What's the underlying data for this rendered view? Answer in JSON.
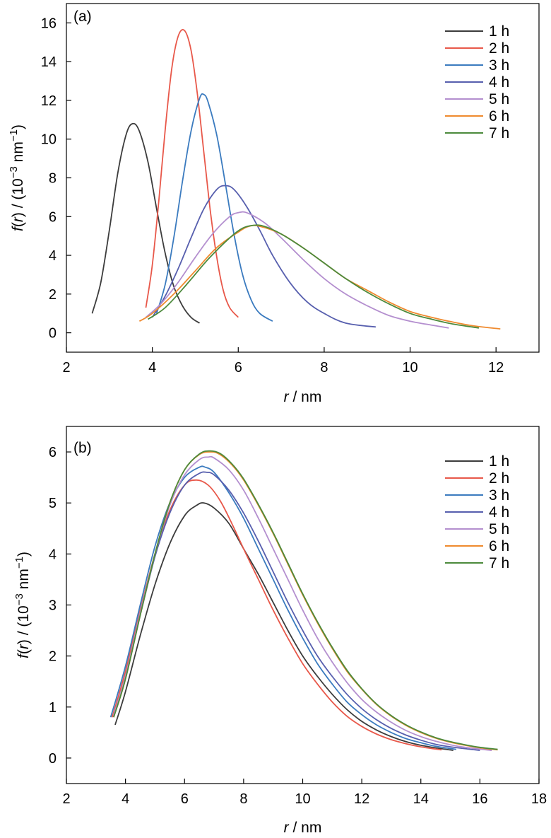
{
  "chart_data": [
    {
      "type": "line",
      "panel_label": "(a)",
      "xlabel_var": "r",
      "xlabel_unit": " / nm",
      "ylabel": {
        "f": "f",
        "open": "(",
        "var": "r",
        "close": ")",
        "mid": " / (10",
        "exp1": "−3",
        "unit": " nm",
        "exp2": "−1",
        "end": ")"
      },
      "xlim": [
        2,
        13
      ],
      "ylim": [
        -1,
        17
      ],
      "xticks": [
        2,
        4,
        6,
        8,
        10,
        12
      ],
      "yticks": [
        0,
        2,
        4,
        6,
        8,
        10,
        12,
        14,
        16
      ],
      "grid": false,
      "legend_position": "top-right",
      "series": [
        {
          "name": "1 h",
          "color": "#3c3c3c",
          "x": [
            2.6,
            2.8,
            3.0,
            3.2,
            3.4,
            3.55,
            3.7,
            3.9,
            4.1,
            4.3,
            4.5,
            4.7,
            4.9,
            5.1
          ],
          "y": [
            1.0,
            2.6,
            5.3,
            8.3,
            10.3,
            10.8,
            10.4,
            8.8,
            6.4,
            4.1,
            2.4,
            1.4,
            0.8,
            0.5
          ]
        },
        {
          "name": "2 h",
          "color": "#e8584a",
          "x": [
            3.85,
            4.0,
            4.15,
            4.3,
            4.45,
            4.6,
            4.75,
            4.9,
            5.05,
            5.2,
            5.35,
            5.5,
            5.65,
            5.8,
            6.0
          ],
          "y": [
            1.3,
            3.5,
            6.8,
            10.5,
            13.6,
            15.3,
            15.6,
            14.6,
            12.3,
            9.3,
            6.3,
            3.9,
            2.2,
            1.3,
            0.8
          ]
        },
        {
          "name": "3 h",
          "color": "#3b7bbf",
          "x": [
            4.1,
            4.3,
            4.5,
            4.7,
            4.9,
            5.1,
            5.2,
            5.3,
            5.5,
            5.7,
            5.9,
            6.1,
            6.3,
            6.5,
            6.8
          ],
          "y": [
            1.0,
            2.5,
            4.9,
            7.8,
            10.4,
            12.1,
            12.3,
            11.9,
            10.2,
            7.7,
            5.1,
            3.0,
            1.7,
            1.0,
            0.6
          ]
        },
        {
          "name": "4 h",
          "color": "#575fae",
          "x": [
            4.0,
            4.3,
            4.6,
            4.9,
            5.2,
            5.5,
            5.7,
            5.9,
            6.2,
            6.5,
            6.8,
            7.2,
            7.6,
            8.0,
            8.5,
            9.2
          ],
          "y": [
            0.8,
            1.9,
            3.3,
            4.9,
            6.4,
            7.4,
            7.6,
            7.4,
            6.5,
            5.3,
            4.0,
            2.6,
            1.6,
            1.0,
            0.5,
            0.3
          ]
        },
        {
          "name": "5 h",
          "color": "#b48fcf",
          "x": [
            3.85,
            4.2,
            4.6,
            5.0,
            5.4,
            5.8,
            6.0,
            6.2,
            6.6,
            7.0,
            7.5,
            8.0,
            8.5,
            9.0,
            9.5,
            10.0,
            10.5,
            10.9
          ],
          "y": [
            0.8,
            1.5,
            2.6,
            3.9,
            5.1,
            6.0,
            6.2,
            6.2,
            5.7,
            4.9,
            3.8,
            2.8,
            2.0,
            1.4,
            0.9,
            0.6,
            0.4,
            0.25
          ]
        },
        {
          "name": "6 h",
          "color": "#ef8a2e",
          "x": [
            3.7,
            4.0,
            4.5,
            5.0,
            5.5,
            6.0,
            6.25,
            6.5,
            7.0,
            7.5,
            8.0,
            8.5,
            9.0,
            9.5,
            10.0,
            10.5,
            11.0,
            11.5,
            12.1
          ],
          "y": [
            0.6,
            1.0,
            2.0,
            3.2,
            4.4,
            5.2,
            5.5,
            5.5,
            5.1,
            4.4,
            3.6,
            2.8,
            2.2,
            1.6,
            1.1,
            0.8,
            0.55,
            0.35,
            0.2
          ]
        },
        {
          "name": "7 h",
          "color": "#4c8a3c",
          "x": [
            3.9,
            4.3,
            4.8,
            5.3,
            5.8,
            6.1,
            6.35,
            6.6,
            7.0,
            7.5,
            8.0,
            8.5,
            9.0,
            9.5,
            10.0,
            10.5,
            11.0,
            11.6
          ],
          "y": [
            0.7,
            1.3,
            2.5,
            3.8,
            4.9,
            5.4,
            5.55,
            5.5,
            5.1,
            4.4,
            3.6,
            2.8,
            2.1,
            1.5,
            1.0,
            0.7,
            0.45,
            0.25
          ]
        }
      ]
    },
    {
      "type": "line",
      "panel_label": "(b)",
      "xlabel_var": "r",
      "xlabel_unit": " / nm",
      "ylabel": {
        "f": "f",
        "open": "(",
        "var": "r",
        "close": ")",
        "mid": " / (10",
        "exp1": "−3",
        "unit": " nm",
        "exp2": "−1",
        "end": ")"
      },
      "xlim": [
        2,
        18
      ],
      "ylim": [
        -0.5,
        6.5
      ],
      "xticks": [
        2,
        4,
        6,
        8,
        10,
        12,
        14,
        16,
        18
      ],
      "yticks": [
        0,
        1,
        2,
        3,
        4,
        5,
        6
      ],
      "grid": false,
      "legend_position": "top-right",
      "series": [
        {
          "name": "1 h",
          "color": "#3c3c3c",
          "x": [
            3.65,
            4.0,
            4.5,
            5.0,
            5.5,
            6.0,
            6.4,
            6.65,
            7.0,
            7.5,
            8.0,
            8.5,
            9.0,
            9.5,
            10.0,
            10.5,
            11.0,
            11.5,
            12.0,
            12.5,
            13.0,
            13.5,
            14.0,
            14.5,
            15.1
          ],
          "y": [
            0.65,
            1.3,
            2.4,
            3.4,
            4.2,
            4.75,
            4.95,
            5.0,
            4.9,
            4.6,
            4.1,
            3.6,
            3.05,
            2.5,
            2.0,
            1.6,
            1.25,
            0.95,
            0.72,
            0.55,
            0.42,
            0.32,
            0.25,
            0.2,
            0.15
          ]
        },
        {
          "name": "2 h",
          "color": "#e8584a",
          "x": [
            3.55,
            4.0,
            4.5,
            5.0,
            5.5,
            6.0,
            6.4,
            6.8,
            7.2,
            7.6,
            8.0,
            8.5,
            9.0,
            9.5,
            10.0,
            10.5,
            11.0,
            11.5,
            12.0,
            12.5,
            13.0,
            13.5,
            14.0,
            14.7
          ],
          "y": [
            0.8,
            1.7,
            2.9,
            4.0,
            4.85,
            5.35,
            5.45,
            5.35,
            5.05,
            4.6,
            4.1,
            3.5,
            2.9,
            2.35,
            1.85,
            1.45,
            1.1,
            0.82,
            0.62,
            0.47,
            0.36,
            0.28,
            0.22,
            0.16
          ]
        },
        {
          "name": "3 h",
          "color": "#3b7bbf",
          "x": [
            3.5,
            4.0,
            4.5,
            5.0,
            5.5,
            6.0,
            6.5,
            6.7,
            7.0,
            7.5,
            8.0,
            8.5,
            9.0,
            9.5,
            10.0,
            10.5,
            11.0,
            11.5,
            12.0,
            12.5,
            13.0,
            13.5,
            14.0,
            14.5,
            15.2
          ],
          "y": [
            0.8,
            1.8,
            3.0,
            4.15,
            5.0,
            5.5,
            5.7,
            5.7,
            5.6,
            5.2,
            4.7,
            4.1,
            3.5,
            2.9,
            2.35,
            1.85,
            1.45,
            1.1,
            0.85,
            0.65,
            0.5,
            0.38,
            0.3,
            0.23,
            0.17
          ]
        },
        {
          "name": "4 h",
          "color": "#575fae",
          "x": [
            3.6,
            4.0,
            4.5,
            5.0,
            5.5,
            6.0,
            6.5,
            6.75,
            7.0,
            7.5,
            8.0,
            8.5,
            9.0,
            9.5,
            10.0,
            10.5,
            11.0,
            11.5,
            12.0,
            12.5,
            13.0,
            13.5,
            14.0,
            14.5,
            15.0,
            16.0
          ],
          "y": [
            0.8,
            1.6,
            2.8,
            3.95,
            4.8,
            5.35,
            5.58,
            5.6,
            5.55,
            5.25,
            4.8,
            4.25,
            3.65,
            3.05,
            2.5,
            2.0,
            1.6,
            1.25,
            0.97,
            0.75,
            0.58,
            0.45,
            0.35,
            0.27,
            0.22,
            0.15
          ]
        },
        {
          "name": "5 h",
          "color": "#b48fcf",
          "x": [
            3.6,
            4.0,
            4.5,
            5.0,
            5.5,
            6.0,
            6.5,
            6.8,
            7.0,
            7.5,
            8.0,
            8.5,
            9.0,
            9.5,
            10.0,
            10.5,
            11.0,
            11.5,
            12.0,
            12.5,
            13.0,
            13.5,
            14.0,
            14.5,
            15.0,
            15.5,
            16.4
          ],
          "y": [
            0.85,
            1.6,
            2.85,
            4.0,
            4.95,
            5.55,
            5.85,
            5.9,
            5.88,
            5.65,
            5.25,
            4.7,
            4.1,
            3.5,
            2.9,
            2.35,
            1.88,
            1.48,
            1.15,
            0.9,
            0.7,
            0.54,
            0.42,
            0.33,
            0.26,
            0.21,
            0.15
          ]
        },
        {
          "name": "6 h",
          "color": "#ef8a2e",
          "x": [
            3.6,
            4.0,
            4.5,
            5.0,
            5.5,
            6.0,
            6.5,
            6.9,
            7.2,
            7.6,
            8.0,
            8.5,
            9.0,
            9.5,
            10.0,
            10.5,
            11.0,
            11.5,
            12.0,
            12.5,
            13.0,
            13.5,
            14.0,
            14.5,
            15.0,
            15.5,
            16.0,
            16.6
          ],
          "y": [
            0.8,
            1.55,
            2.8,
            4.0,
            5.0,
            5.65,
            5.95,
            6.0,
            5.95,
            5.75,
            5.45,
            4.95,
            4.4,
            3.8,
            3.2,
            2.65,
            2.15,
            1.7,
            1.35,
            1.05,
            0.82,
            0.64,
            0.5,
            0.39,
            0.31,
            0.25,
            0.2,
            0.16
          ]
        },
        {
          "name": "7 h",
          "color": "#4c8a3c",
          "x": [
            3.6,
            4.0,
            4.5,
            5.0,
            5.5,
            6.0,
            6.5,
            6.85,
            7.2,
            7.6,
            8.0,
            8.5,
            9.0,
            9.5,
            10.0,
            10.5,
            11.0,
            11.5,
            12.0,
            12.5,
            13.0,
            13.5,
            14.0,
            14.5,
            15.0,
            15.5,
            16.0,
            16.6
          ],
          "y": [
            0.8,
            1.55,
            2.8,
            4.0,
            5.0,
            5.65,
            5.96,
            6.02,
            5.97,
            5.77,
            5.47,
            4.97,
            4.42,
            3.82,
            3.22,
            2.67,
            2.17,
            1.72,
            1.36,
            1.06,
            0.83,
            0.65,
            0.51,
            0.4,
            0.32,
            0.26,
            0.21,
            0.17
          ]
        }
      ]
    }
  ]
}
